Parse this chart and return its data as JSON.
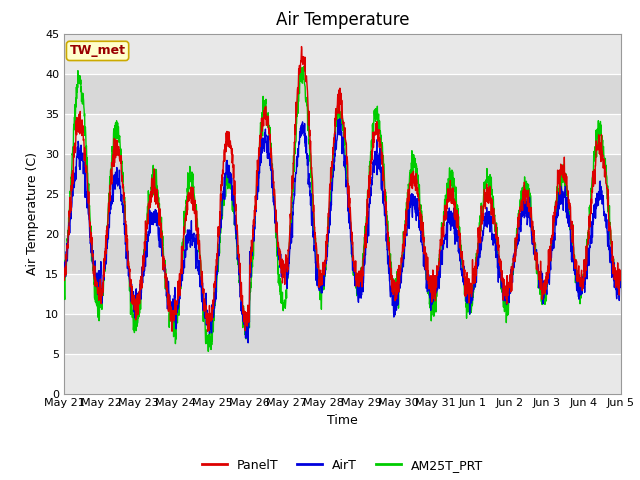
{
  "title": "Air Temperature",
  "xlabel": "Time",
  "ylabel": "Air Temperature (C)",
  "ylim": [
    0,
    45
  ],
  "yticks": [
    0,
    5,
    10,
    15,
    20,
    25,
    30,
    35,
    40,
    45
  ],
  "x_labels": [
    "May 21",
    "May 22",
    "May 23",
    "May 24",
    "May 25",
    "May 26",
    "May 27",
    "May 28",
    "May 29",
    "May 30",
    "May 31",
    "Jun 1",
    "Jun 2",
    "Jun 3",
    "Jun 4",
    "Jun 5"
  ],
  "annotation_text": "TW_met",
  "annotation_bg": "#FFFFCC",
  "annotation_border": "#CCAA00",
  "annotation_text_color": "#990000",
  "bg_color": "#E8E8E8",
  "band_color_dark": "#D8D8D8",
  "fig_bg": "#FFFFFF",
  "legend_entries": [
    "PanelT",
    "AirT",
    "AM25T_PRT"
  ],
  "line_colors": [
    "#DD0000",
    "#0000DD",
    "#00CC00"
  ],
  "title_fontsize": 12,
  "label_fontsize": 9,
  "tick_fontsize": 8
}
